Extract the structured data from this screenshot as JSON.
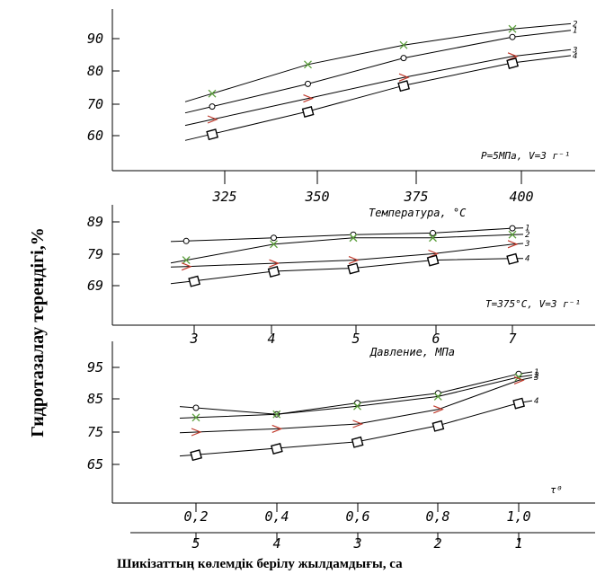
{
  "chart_data": [
    {
      "type": "line",
      "ylabel": "Гидротазалау терендігі,%",
      "caption": "P=5МПа, V=3 г⁻¹",
      "x_ticks": [
        "325",
        "350",
        "375",
        "400"
      ],
      "y_ticks": [
        "60",
        "70",
        "80",
        "90"
      ],
      "ylim": [
        51,
        108
      ],
      "series": [
        {
          "name": "2",
          "marker": "x",
          "x": [
            322,
            344,
            366,
            391
          ],
          "y": [
            73,
            82,
            88,
            93
          ]
        },
        {
          "name": "1",
          "marker": "o",
          "x": [
            322,
            344,
            366,
            391
          ],
          "y": [
            69,
            76,
            84,
            90.5
          ]
        },
        {
          "name": "3",
          "marker": "triangle",
          "x": [
            322,
            344,
            366,
            391
          ],
          "y": [
            65,
            71.5,
            78,
            84.5
          ]
        },
        {
          "name": "4",
          "marker": "square",
          "x": [
            322,
            344,
            366,
            391
          ],
          "y": [
            60.5,
            67.5,
            75.5,
            82.5
          ]
        }
      ]
    },
    {
      "type": "line",
      "title": "Температура, °С",
      "caption": "T=375°С, V=3 г⁻¹",
      "x_ticks": [
        "3",
        "4",
        "5",
        "6",
        "7"
      ],
      "y_ticks": [
        "69",
        "79",
        "89"
      ],
      "ylim": [
        57,
        96
      ],
      "series": [
        {
          "name": "1",
          "marker": "o",
          "x": [
            2.9,
            4,
            5,
            6,
            7
          ],
          "y": [
            83,
            84,
            85,
            85.5,
            87
          ]
        },
        {
          "name": "2",
          "marker": "x",
          "x": [
            2.9,
            4,
            5,
            6,
            7
          ],
          "y": [
            77,
            82,
            84,
            84,
            85
          ]
        },
        {
          "name": "3",
          "marker": "triangle",
          "x": [
            2.9,
            4,
            5,
            6,
            7
          ],
          "y": [
            75,
            76,
            77,
            79,
            82
          ]
        },
        {
          "name": "4",
          "marker": "square",
          "x": [
            3,
            4,
            5,
            6,
            7
          ],
          "y": [
            70.5,
            73.5,
            74.5,
            77,
            77.5
          ]
        }
      ]
    },
    {
      "type": "line",
      "title": "Давление, МПа",
      "caption": "τ⁰",
      "x_ticks": [
        "0,2",
        "0,4",
        "0,6",
        "0,8",
        "1,0"
      ],
      "x2_ticks": [
        "5",
        "4",
        "3",
        "2",
        "1"
      ],
      "xlabel": "Шикізаттың көлемдік берілу жылдамдығы, са",
      "y_ticks": [
        "65",
        "75",
        "85",
        "95"
      ],
      "ylim": [
        49,
        104
      ],
      "series": [
        {
          "name": "1",
          "marker": "o",
          "x": [
            0.2,
            0.4,
            0.6,
            0.8,
            1.0
          ],
          "y": [
            82.5,
            80.5,
            84,
            87,
            93
          ]
        },
        {
          "name": "2",
          "marker": "x",
          "x": [
            0.2,
            0.4,
            0.6,
            0.8,
            1.0
          ],
          "y": [
            79.5,
            80.5,
            83,
            86,
            92
          ]
        },
        {
          "name": "3",
          "marker": "triangle",
          "x": [
            0.2,
            0.4,
            0.6,
            0.8,
            1.0
          ],
          "y": [
            75,
            76,
            77.5,
            82,
            91
          ]
        },
        {
          "name": "4",
          "marker": "square",
          "x": [
            0.2,
            0.4,
            0.6,
            0.8,
            1.0
          ],
          "y": [
            68,
            70,
            72,
            77,
            84
          ]
        }
      ]
    }
  ]
}
